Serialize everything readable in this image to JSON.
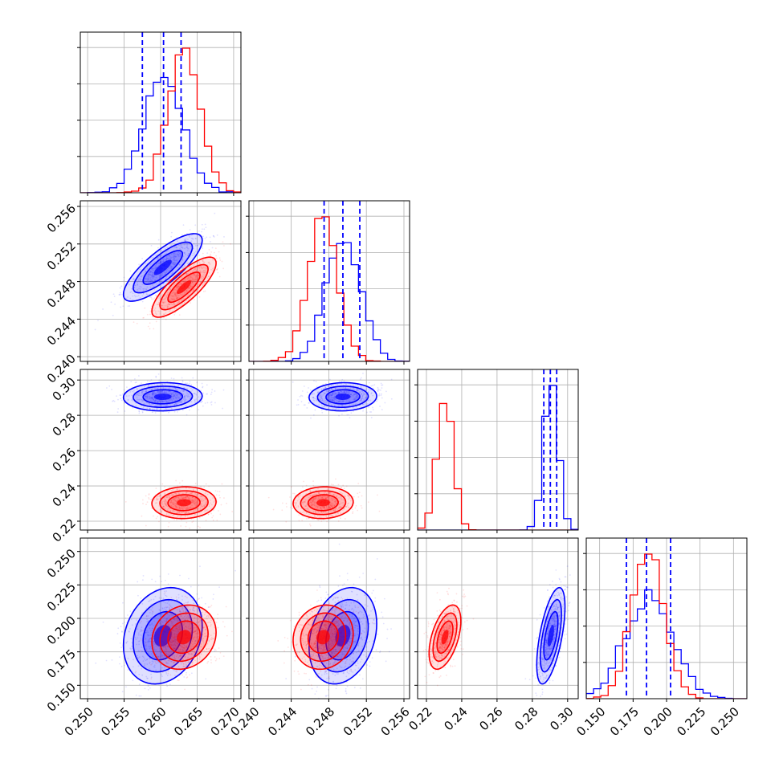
{
  "chart_data": {
    "type": "corner",
    "series": [
      {
        "name": "",
        "color": "#0000ff",
        "means": [
          0.2603,
          0.2495,
          0.2905,
          0.187
        ],
        "sds": [
          0.0027,
          0.0018,
          0.004,
          0.018
        ],
        "quantiles": [
          [
            0.2575,
            0.2604,
            0.2628
          ],
          [
            0.2475,
            0.2495,
            0.2513
          ],
          [
            0.2865,
            0.2902,
            0.2938
          ],
          [
            0.17,
            0.185,
            0.203
          ]
        ]
      },
      {
        "name": "",
        "color": "#ff0000",
        "means": [
          0.2632,
          0.2474,
          0.2305,
          0.186
        ],
        "sds": [
          0.0022,
          0.0016,
          0.0045,
          0.012
        ]
      }
    ],
    "correlations": {
      "0-1": [
        0.8,
        0.8
      ],
      "0-2": [
        0.05,
        0.05
      ],
      "1-2": [
        0.05,
        0.05
      ],
      "0-3": [
        0.2,
        0.15
      ],
      "1-3": [
        0.25,
        0.1
      ],
      "2-3": [
        0.6,
        0.5
      ]
    },
    "ranges": [
      [
        0.249,
        0.271
      ],
      [
        0.2395,
        0.2566
      ],
      [
        0.215,
        0.306
      ],
      [
        0.14,
        0.26
      ]
    ],
    "ticks": [
      [
        "0.250",
        "0.255",
        "0.260",
        "0.265",
        "0.270"
      ],
      [
        "0.240",
        "0.244",
        "0.248",
        "0.252",
        "0.256"
      ],
      [
        "0.22",
        "0.24",
        "0.26",
        "0.28",
        "0.30"
      ],
      [
        "0.150",
        "0.175",
        "0.200",
        "0.225",
        "0.250"
      ]
    ],
    "grid": true,
    "histogram_bins": 20
  }
}
